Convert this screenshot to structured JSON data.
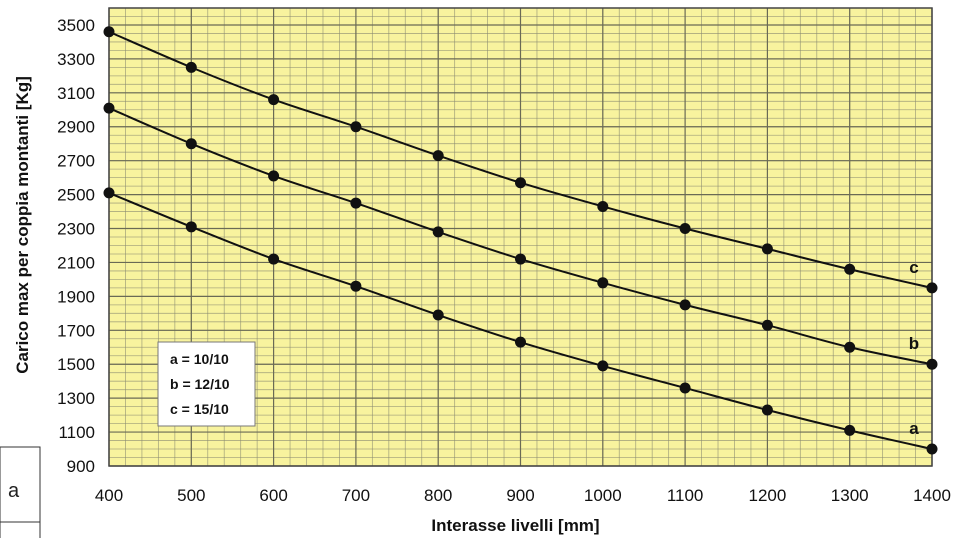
{
  "side_box_label": "a",
  "chart_data": {
    "type": "line",
    "xlabel": "Interasse livelli [mm]",
    "ylabel": "Carico max per coppia montanti [Kg]",
    "x": [
      400,
      500,
      600,
      700,
      800,
      900,
      1000,
      1100,
      1200,
      1300,
      1400
    ],
    "xticks": [
      400,
      500,
      600,
      700,
      800,
      900,
      1000,
      1100,
      1200,
      1300,
      1400
    ],
    "yticks": [
      900,
      1100,
      1300,
      1500,
      1700,
      1900,
      2100,
      2300,
      2500,
      2700,
      2900,
      3100,
      3300,
      3500
    ],
    "xlim": [
      400,
      1400
    ],
    "ylim": [
      900,
      3600
    ],
    "grid": true,
    "background_color": "#f8f39e",
    "grid_color": "#8a8a70",
    "line_color": "#111111",
    "series": [
      {
        "name": "a",
        "values": [
          2510,
          2310,
          2120,
          1960,
          1790,
          1630,
          1490,
          1360,
          1230,
          1110,
          1000
        ]
      },
      {
        "name": "b",
        "values": [
          3010,
          2800,
          2610,
          2450,
          2280,
          2120,
          1980,
          1850,
          1730,
          1600,
          1500
        ]
      },
      {
        "name": "c",
        "values": [
          3460,
          3250,
          3060,
          2900,
          2730,
          2570,
          2430,
          2300,
          2180,
          2060,
          1950
        ]
      }
    ],
    "legend": {
      "placement": "lower-left",
      "entries": [
        "a = 10/10",
        "b = 12/10",
        "c = 15/10"
      ]
    }
  }
}
